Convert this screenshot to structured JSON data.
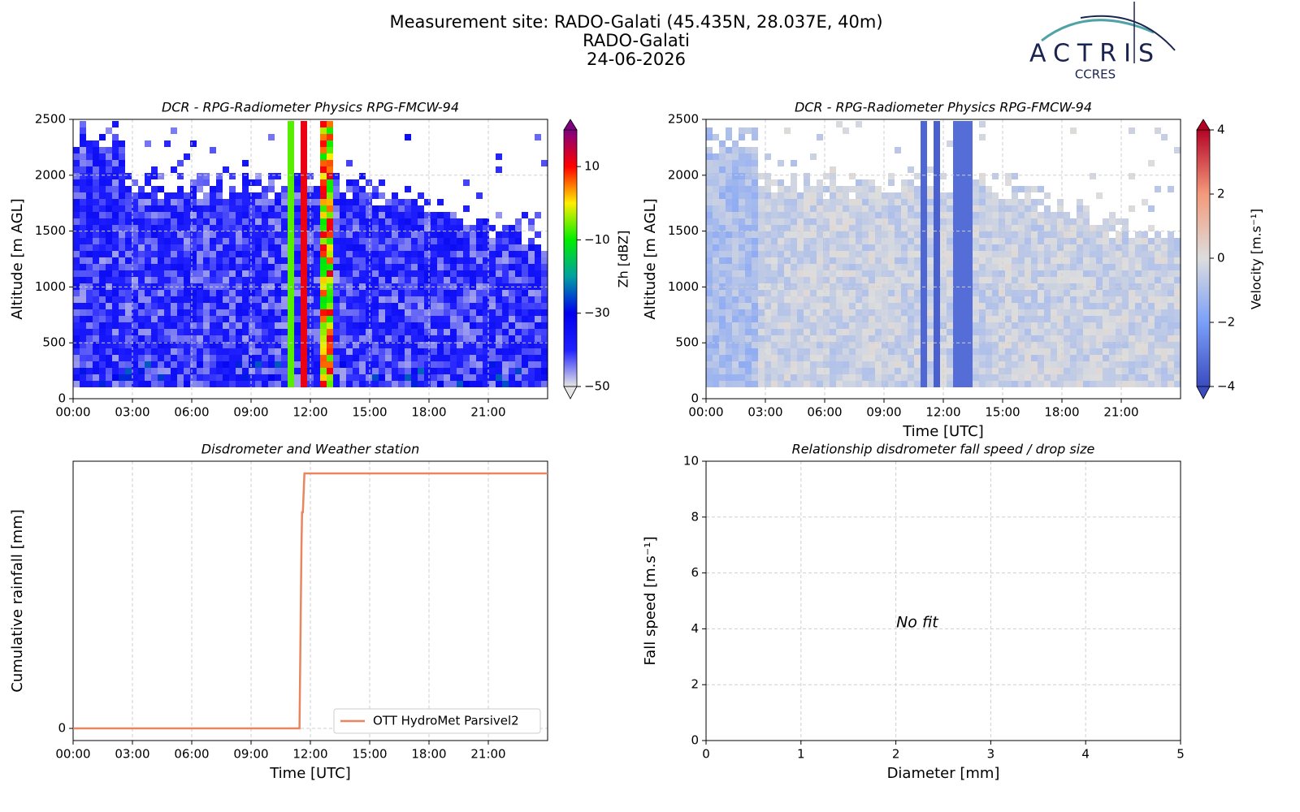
{
  "header": {
    "title": "Measurement site: RADO-Galati (45.435N, 28.037E, 40m)",
    "site": "RADO-Galati",
    "date": "24-06-2026"
  },
  "logo": {
    "name": "ACTRIS",
    "subtitle": "CCRES"
  },
  "chart_data": [
    {
      "type": "heatmap",
      "title": "DCR - RPG-Radiometer Physics RPG-FMCW-94",
      "y_label": "Altitude [m AGL]",
      "xlim": [
        0,
        24
      ],
      "xticks": [
        {
          "value": 0,
          "label": "00:00"
        },
        {
          "value": 3,
          "label": "03:00"
        },
        {
          "value": 6,
          "label": "06:00"
        },
        {
          "value": 9,
          "label": "09:00"
        },
        {
          "value": 12,
          "label": "12:00"
        },
        {
          "value": 15,
          "label": "15:00"
        },
        {
          "value": 18,
          "label": "18:00"
        },
        {
          "value": 21,
          "label": "21:00"
        }
      ],
      "ylim": [
        0,
        2500
      ],
      "yticks": [
        0,
        500,
        1000,
        1500,
        2000,
        2500
      ],
      "grid": true,
      "colorbar": {
        "label": "Zh [dBZ]",
        "lim": [
          -50,
          20
        ],
        "ticks": [
          {
            "value": -50,
            "label": "−50"
          },
          {
            "value": -30,
            "label": "−30"
          },
          {
            "value": -10,
            "label": "−10"
          },
          10
        ],
        "colors": [
          "#e6e6e6",
          "#2020ff",
          "#0000ee",
          "#00a0a0",
          "#00ee00",
          "#ffee00",
          "#ff0000",
          "#800080"
        ]
      }
    },
    {
      "type": "heatmap",
      "title": "DCR - RPG-Radiometer Physics RPG-FMCW-94",
      "y_label": "Altitude [m AGL]",
      "x_label": "Time [UTC]",
      "xlim": [
        0,
        24
      ],
      "xticks": [
        {
          "value": 0,
          "label": "00:00"
        },
        {
          "value": 3,
          "label": "03:00"
        },
        {
          "value": 6,
          "label": "06:00"
        },
        {
          "value": 9,
          "label": "09:00"
        },
        {
          "value": 12,
          "label": "12:00"
        },
        {
          "value": 15,
          "label": "15:00"
        },
        {
          "value": 18,
          "label": "18:00"
        },
        {
          "value": 21,
          "label": "21:00"
        }
      ],
      "ylim": [
        0,
        2500
      ],
      "yticks": [
        0,
        500,
        1000,
        1500,
        2000,
        2500
      ],
      "grid": true,
      "colorbar": {
        "label": "Velocity [m.s⁻¹]",
        "lim": [
          -4,
          4
        ],
        "ticks": [
          {
            "value": -4,
            "label": "−4"
          },
          {
            "value": -2,
            "label": "−2"
          },
          0,
          2,
          4
        ],
        "colors": [
          "#3b4cc0",
          "#7b9ff9",
          "#dddddd",
          "#f49a7b",
          "#b40426"
        ]
      }
    },
    {
      "type": "line",
      "title": "Disdrometer and Weather station",
      "y_label": "Cumulative rainfall [mm]",
      "x_label": "Time [UTC]",
      "xlim": [
        0,
        24
      ],
      "xticks": [
        {
          "value": 0,
          "label": "00:00"
        },
        {
          "value": 3,
          "label": "03:00"
        },
        {
          "value": 6,
          "label": "06:00"
        },
        {
          "value": 9,
          "label": "09:00"
        },
        {
          "value": 12,
          "label": "12:00"
        },
        {
          "value": 15,
          "label": "15:00"
        },
        {
          "value": 18,
          "label": "18:00"
        },
        {
          "value": 21,
          "label": "21:00"
        }
      ],
      "ylim": [
        -1,
        22
      ],
      "yticks": [
        0
      ],
      "grid": true,
      "legend": "lower right",
      "x": [
        0,
        11.45,
        11.55,
        11.58,
        11.62,
        11.7,
        24
      ],
      "series": [
        {
          "name": "OTT HydroMet Parsivel2",
          "color": "#e8865f",
          "values": [
            0,
            0,
            15,
            17.8,
            17.8,
            21,
            21
          ]
        }
      ]
    },
    {
      "type": "scatter",
      "title": "Relationship disdrometer fall speed / drop size",
      "x_label": "Diameter [mm]",
      "y_label": "Fall speed [m.s⁻¹]",
      "xlim": [
        0,
        5
      ],
      "xticks": [
        0,
        1,
        2,
        3,
        4,
        5
      ],
      "ylim": [
        0,
        10
      ],
      "yticks": [
        0,
        2,
        4,
        6,
        8,
        10
      ],
      "grid": true,
      "annotation": "No fit"
    }
  ]
}
